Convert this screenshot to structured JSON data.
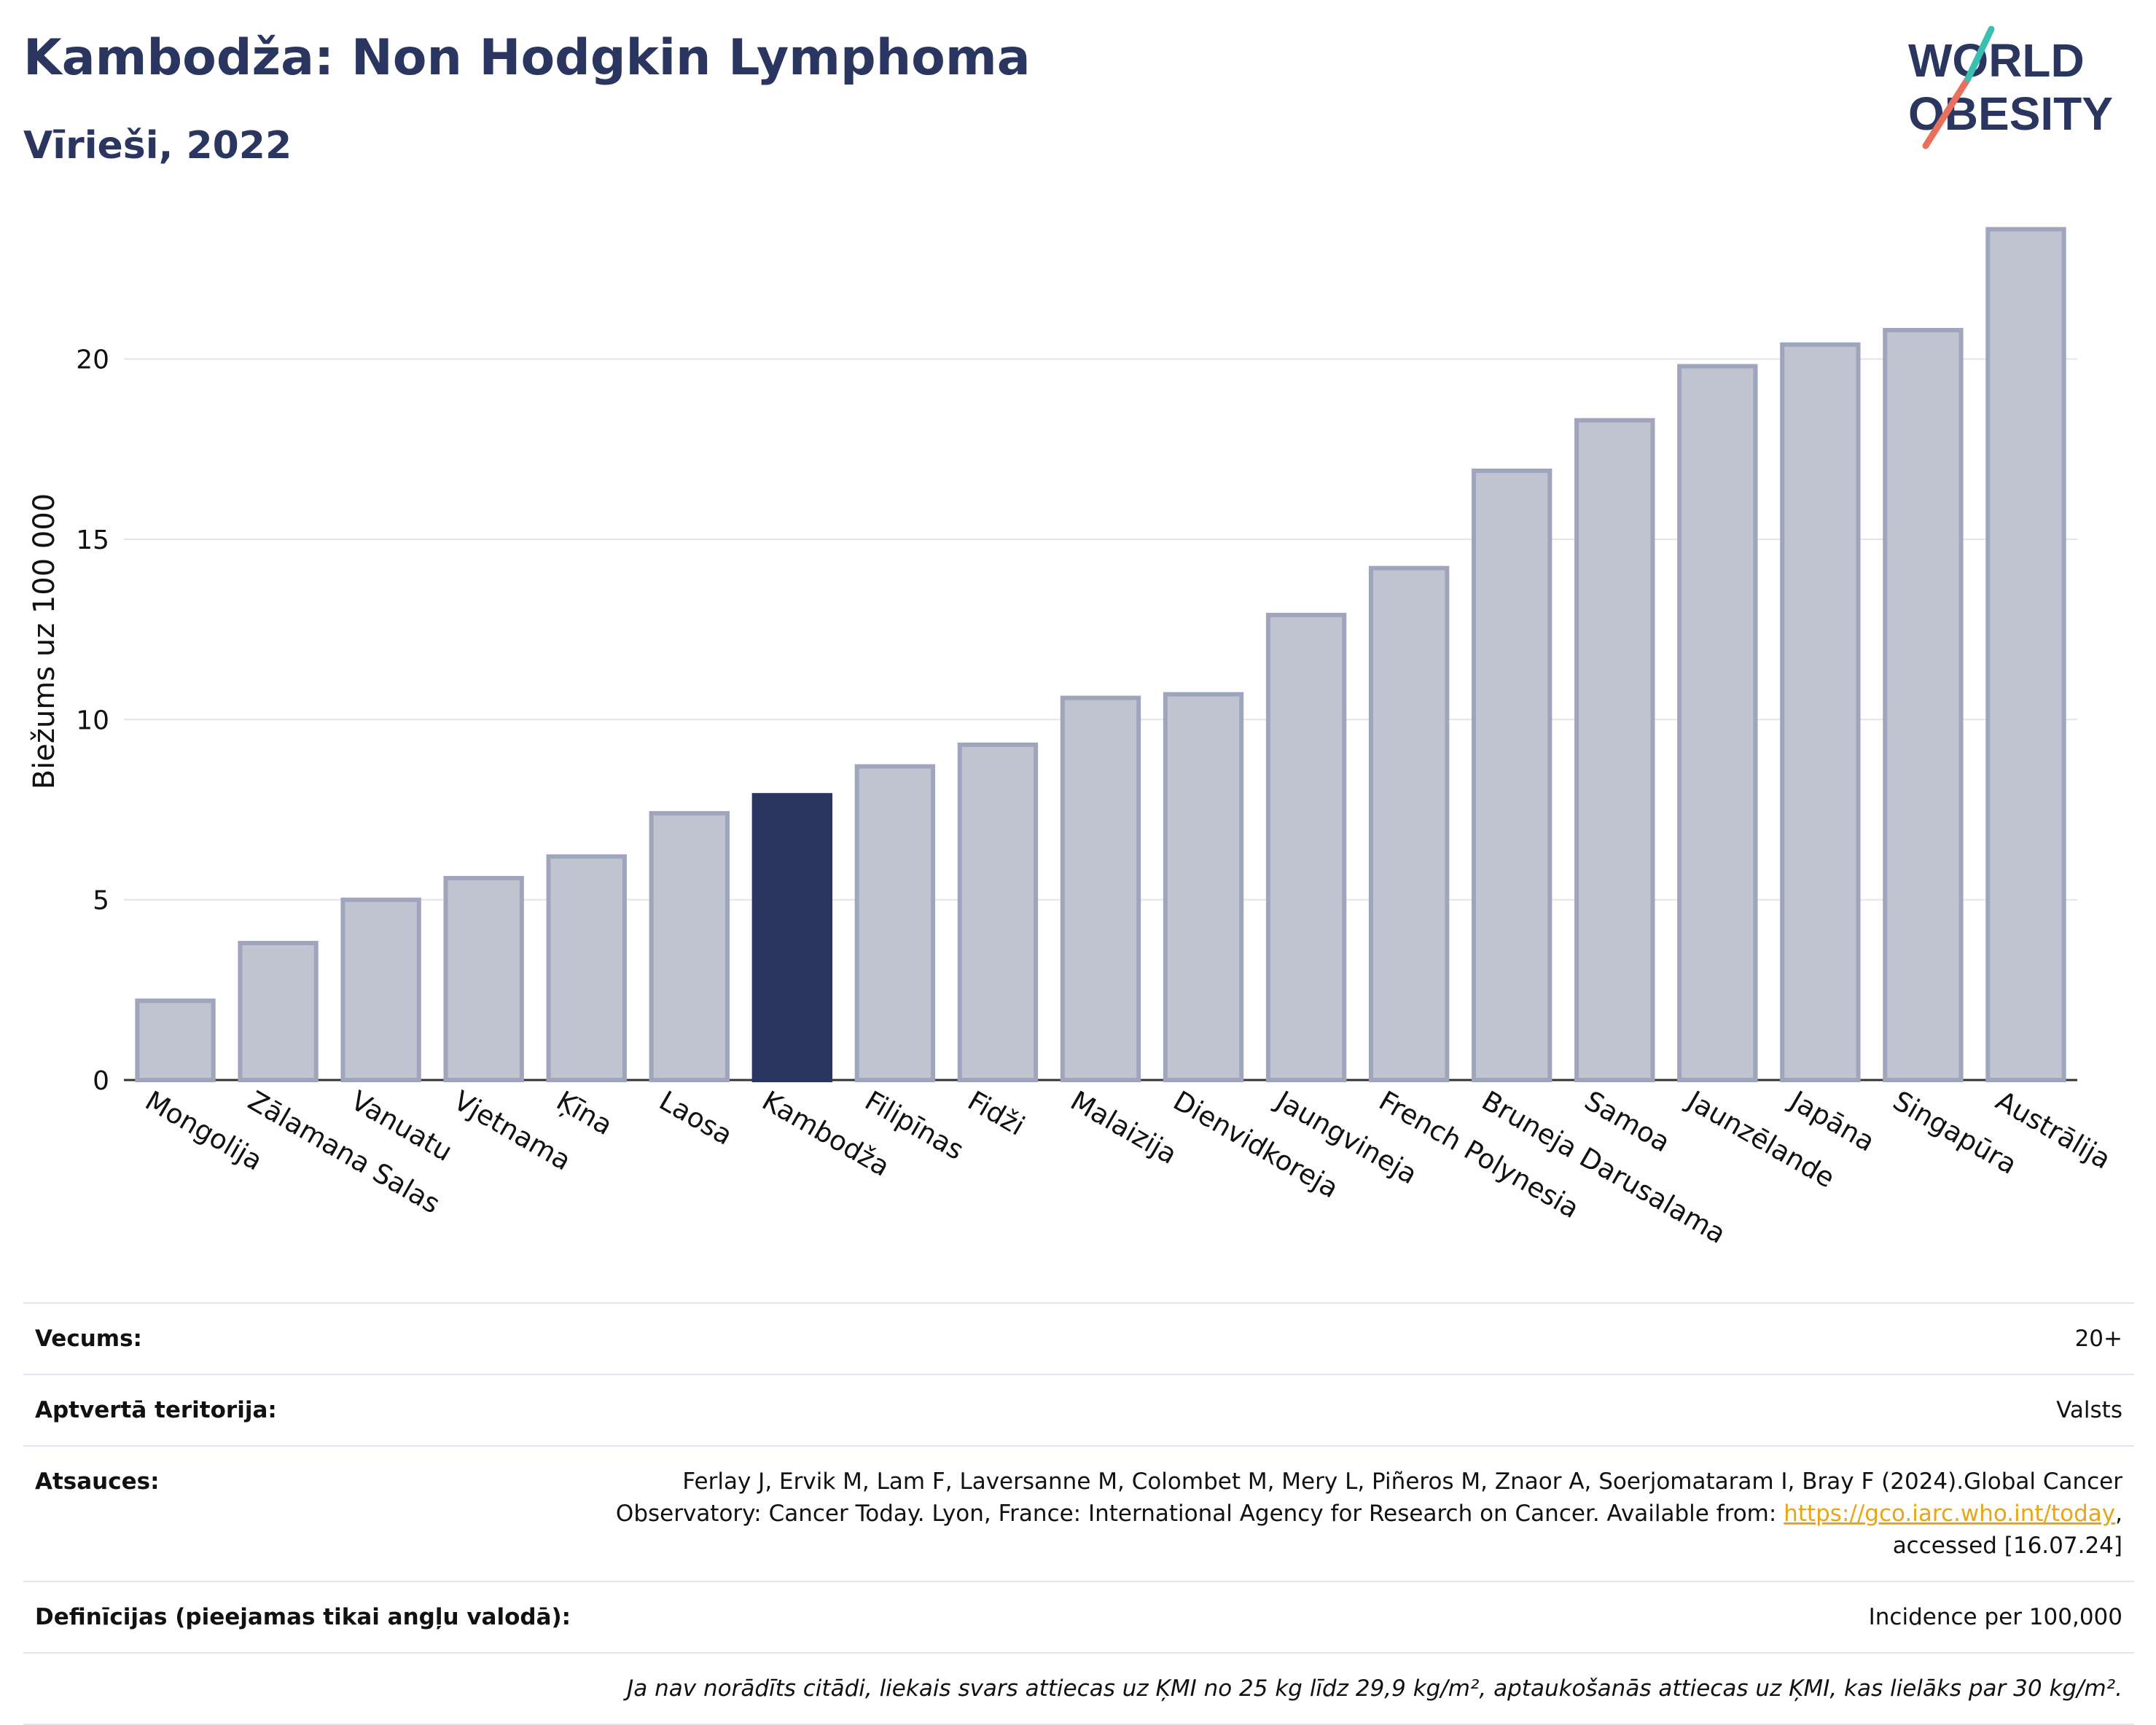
{
  "header": {
    "title": "Kambodža: Non Hodgkin Lymphoma",
    "subtitle": "Vīrieši, 2022"
  },
  "logo": {
    "line1": "WORLD",
    "line2": "OBESITY"
  },
  "colors": {
    "title": "#2a365f",
    "bar": "#c0c4d0",
    "bar_stroke": "#9fa5bd",
    "highlight": "#2a365f",
    "logo_teal": "#3bbfb0",
    "logo_red": "#e8705e",
    "link": "#e8a517"
  },
  "chart_data": {
    "type": "bar",
    "ylabel": "Biežums uz 100 000",
    "xlabel": "",
    "ylim": [
      0,
      24.5
    ],
    "yticks": [
      0,
      5,
      10,
      15,
      20
    ],
    "grid": true,
    "highlight": "Kambodža",
    "categories": [
      "Mongolija",
      "Zālamana Salas",
      "Vanuatu",
      "Vjetnama",
      "Ķīna",
      "Laosa",
      "Kambodža",
      "Filipīnas",
      "Fidži",
      "Malaizija",
      "Dienvidkoreja",
      "Jaungvineja",
      "French Polynesia",
      "Bruneja Darusalama",
      "Samoa",
      "Jaunzēlande",
      "Japāna",
      "Singapūra",
      "Austrālija"
    ],
    "values": [
      2.2,
      3.8,
      5.0,
      5.6,
      6.2,
      7.4,
      7.9,
      8.7,
      9.3,
      10.6,
      10.7,
      12.9,
      14.2,
      16.9,
      18.3,
      19.8,
      20.4,
      20.8,
      23.6
    ]
  },
  "info": {
    "age_label": "Vecums:",
    "age_value": "20+",
    "coverage_label": "Aptvertā teritorija:",
    "coverage_value": "Valsts",
    "refs_label": "Atsauces:",
    "refs_text_1": "Ferlay J, Ervik M, Lam F, Laversanne M, Colombet M, Mery L, Piñeros M, Znaor A, Soerjomataram I, Bray F (2024).Global Cancer Observatory: Cancer Today. Lyon, France: International Agency for Research on Cancer. Available from: ",
    "refs_link": "https://gco.iarc.who.int/today",
    "refs_text_2": ", accessed [16.07.24]",
    "defs_label": "Definīcijas (pieejamas tikai angļu valodā):",
    "defs_value": "Incidence per 100,000",
    "note": "Ja nav norādīts citādi, liekais svars attiecas uz ĶMI no 25 kg līdz 29,9 kg/m², aptaukošanās attiecas uz ĶMI, kas lielāks par 30 kg/m²."
  }
}
